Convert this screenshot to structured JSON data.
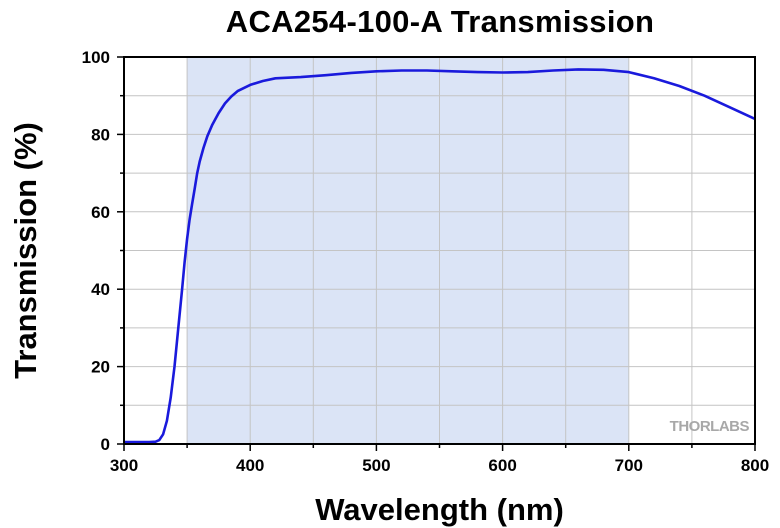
{
  "chart_data": {
    "type": "line",
    "title": "ACA254-100-A Transmission",
    "xlabel": "Wavelength (nm)",
    "ylabel": "Transmission (%)",
    "xlim": [
      300,
      800
    ],
    "ylim": [
      0,
      100
    ],
    "x_ticks": [
      300,
      400,
      500,
      600,
      700,
      800
    ],
    "y_ticks": [
      0,
      20,
      40,
      60,
      80,
      100
    ],
    "grid": true,
    "shaded_band": {
      "x_start": 350,
      "x_end": 700,
      "color": "#dbe4f6"
    },
    "watermark": "THORLABS",
    "series": [
      {
        "color": "#1a1adc",
        "x": [
          300,
          320,
          325,
          328,
          331,
          334,
          337,
          340,
          343,
          346,
          348,
          350,
          352,
          354,
          356,
          358,
          360,
          363,
          366,
          370,
          375,
          380,
          385,
          390,
          400,
          410,
          420,
          440,
          460,
          480,
          500,
          520,
          540,
          560,
          580,
          600,
          620,
          640,
          660,
          680,
          700,
          720,
          740,
          760,
          780,
          800
        ],
        "y": [
          0.5,
          0.5,
          0.6,
          1.0,
          2.5,
          6.0,
          12.0,
          20.0,
          30.0,
          40.0,
          47.0,
          53.0,
          58.0,
          62.0,
          66.0,
          70.0,
          73.0,
          76.5,
          79.5,
          82.5,
          85.5,
          88.0,
          89.8,
          91.2,
          92.8,
          93.8,
          94.5,
          94.8,
          95.3,
          95.9,
          96.3,
          96.5,
          96.5,
          96.3,
          96.1,
          96.0,
          96.1,
          96.5,
          96.8,
          96.7,
          96.1,
          94.5,
          92.5,
          90.0,
          87.0,
          84.0
        ]
      }
    ]
  }
}
